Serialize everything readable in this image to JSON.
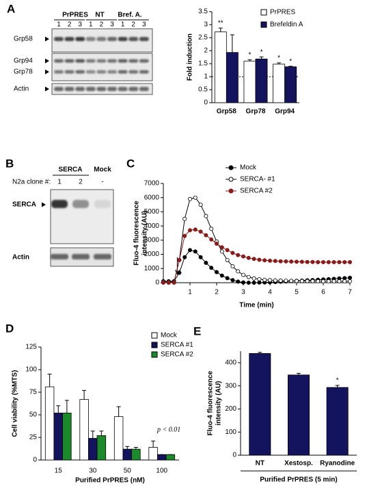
{
  "panel_labels": [
    "A",
    "B",
    "C",
    "D",
    "E"
  ],
  "blot_a": {
    "groups": [
      "PrPRES",
      "NT",
      "Bref. A."
    ],
    "lanes": [
      "1",
      "2",
      "3",
      "1",
      "2",
      "3",
      "1",
      "2",
      "3"
    ],
    "rows": [
      "Grp58",
      "Grp94",
      "Grp78",
      "Actin"
    ]
  },
  "blot_b": {
    "groups": [
      "SERCA",
      "Mock"
    ],
    "clone_label": "N2a clone #:",
    "lanes": [
      "1",
      "2",
      "-"
    ],
    "rows": [
      "SERCA",
      "Actin"
    ]
  },
  "chart_data": [
    {
      "type": "bar",
      "ylabel": "Fold induction",
      "categories": [
        "Grp58",
        "Grp78",
        "Grp94"
      ],
      "series": [
        {
          "name": "PrPRES",
          "color": "#ffffff",
          "values": [
            2.72,
            1.6,
            1.48
          ],
          "errors": [
            0.15,
            0.05,
            0.05
          ],
          "annotations": [
            "**",
            "*",
            "*"
          ]
        },
        {
          "name": "Brefeldin A",
          "color": "#14145e",
          "values": [
            1.93,
            1.68,
            1.38
          ],
          "errors": [
            0.68,
            0.08,
            0.02
          ],
          "annotations": [
            null,
            "*",
            "*"
          ]
        }
      ],
      "ylim": [
        0,
        3.5
      ],
      "yticks": [
        0,
        0.5,
        1,
        1.5,
        2,
        2.5,
        3,
        3.5
      ],
      "reference_line": 1
    },
    {
      "type": "line",
      "xlabel": "Time (min)",
      "ylabel": [
        "Fluo-4 fluorescence",
        "intensity (AU)"
      ],
      "x": [
        0,
        0.2,
        0.4,
        0.6,
        0.8,
        1.0,
        1.2,
        1.4,
        1.6,
        1.8,
        2.0,
        2.2,
        2.4,
        2.6,
        2.8,
        3.0,
        3.2,
        3.4,
        3.6,
        3.8,
        4.0,
        4.2,
        4.4,
        4.6,
        4.8,
        5.0,
        5.2,
        5.4,
        5.6,
        5.8,
        6.0,
        6.2,
        6.4,
        6.6,
        6.8,
        7.0
      ],
      "series": [
        {
          "name": "Mock",
          "color": "#000000",
          "marker": "filled",
          "values": [
            100,
            100,
            100,
            700,
            1800,
            2300,
            2200,
            1800,
            1400,
            1050,
            750,
            500,
            320,
            180,
            80,
            20,
            0,
            0,
            10,
            20,
            30,
            50,
            70,
            90,
            110,
            130,
            150,
            170,
            190,
            210,
            230,
            250,
            270,
            300,
            320,
            350
          ]
        },
        {
          "name": "SERCA- #1",
          "color": "#000000",
          "marker": "open",
          "values": [
            50,
            50,
            50,
            1600,
            4500,
            5900,
            6000,
            5500,
            4700,
            3800,
            2900,
            2200,
            1600,
            1150,
            800,
            550,
            400,
            300,
            250,
            200,
            180,
            160,
            150,
            140,
            130,
            120,
            120,
            110,
            110,
            100,
            100,
            100,
            100,
            100,
            100,
            100
          ]
        },
        {
          "name": "SERCA #2",
          "color": "#8b1a1a",
          "marker": "filled",
          "values": [
            0,
            0,
            0,
            1600,
            3300,
            3700,
            3750,
            3600,
            3350,
            3050,
            2750,
            2500,
            2300,
            2100,
            1950,
            1850,
            1750,
            1680,
            1620,
            1580,
            1550,
            1530,
            1510,
            1500,
            1490,
            1480,
            1470,
            1460,
            1460,
            1450,
            1450,
            1450,
            1450,
            1450,
            1450,
            1450
          ]
        }
      ],
      "xlim": [
        0,
        7
      ],
      "xticks": [
        1,
        2,
        3,
        4,
        5,
        6,
        7
      ],
      "ylim": [
        0,
        7000
      ],
      "yticks": [
        0,
        1000,
        2000,
        3000,
        4000,
        5000,
        6000,
        7000
      ]
    },
    {
      "type": "bar",
      "xlabel": "Purified PrPRES (nM)",
      "ylabel": "Cell viability (%MTS)",
      "annotation": "p < 0.01",
      "categories": [
        "15",
        "30",
        "50",
        "100"
      ],
      "series": [
        {
          "name": "Mock",
          "color": "#ffffff",
          "values": [
            81,
            67,
            48,
            14
          ],
          "errors": [
            14,
            10,
            11,
            7
          ]
        },
        {
          "name": "SERCA #1",
          "color": "#14145e",
          "values": [
            52,
            24,
            12,
            6
          ],
          "errors": [
            8,
            8,
            3,
            0
          ]
        },
        {
          "name": "SERCA #2",
          "color": "#1a8a2a",
          "values": [
            52,
            27,
            12,
            6
          ],
          "errors": [
            14,
            5,
            2,
            0
          ]
        }
      ],
      "ylim": [
        0,
        125
      ],
      "yticks": [
        0,
        25,
        50,
        75,
        100,
        125
      ]
    },
    {
      "type": "bar",
      "xlabel": "Purified PrPRES (5 min)",
      "ylabel": [
        "Fluo-4 fluorescence",
        "intensity (AU)"
      ],
      "categories": [
        "NT",
        "Xestosp.",
        "Ryanodine"
      ],
      "series": [
        {
          "color": "#14145e",
          "values": [
            440,
            347,
            293
          ],
          "errors": [
            5,
            7,
            9
          ],
          "annotations": [
            null,
            null,
            "*"
          ]
        }
      ],
      "ylim": [
        0,
        450
      ],
      "yticks": [
        0,
        100,
        200,
        300,
        400
      ]
    }
  ]
}
